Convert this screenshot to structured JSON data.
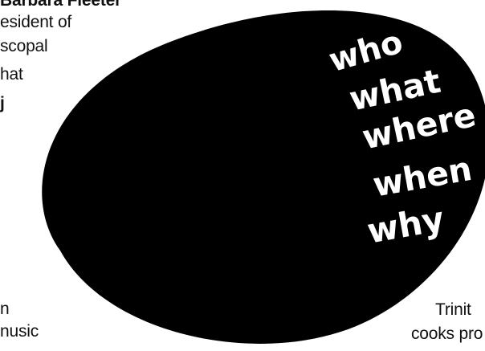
{
  "left_column": {
    "line1": "Barbara Fleeter",
    "line2": "esident of",
    "line3": "scopal",
    "line4": "hat",
    "line5": "j",
    "line6": "n",
    "line7": "nusic"
  },
  "right_column": {
    "line1": "Trinit",
    "line2": "cooks pro"
  },
  "blob_words": [
    "who",
    "what",
    "where",
    "when",
    "why"
  ],
  "colors": {
    "blob": "#000000",
    "blob_text": "#ffffff",
    "body_text": "#111111",
    "background": "#ffffff"
  }
}
